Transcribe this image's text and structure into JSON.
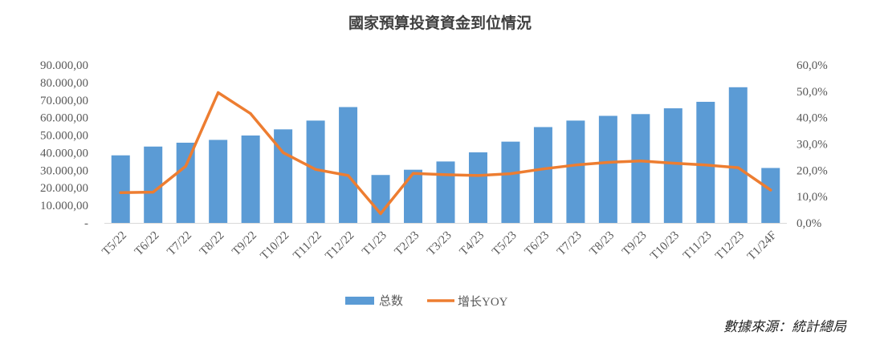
{
  "chart_data": {
    "type": "bar",
    "title": "國家預算投資資金到位情況",
    "source": "數據來源：統計總局",
    "categories": [
      "T5/22",
      "T6/22",
      "T7/22",
      "T8/22",
      "T9/22",
      "T10/22",
      "T11/22",
      "T12/22",
      "T1/23",
      "T2/23",
      "T3/23",
      "T4/23",
      "T5/23",
      "T6/23",
      "T7/23",
      "T8/23",
      "T9/23",
      "T10/23",
      "T11/23",
      "T12/23",
      "T1/24F"
    ],
    "series": [
      {
        "name": "总数",
        "type": "bar",
        "axis": "left",
        "color": "#5b9bd5",
        "values": [
          38500,
          43500,
          45700,
          47300,
          49800,
          53300,
          58300,
          66000,
          27300,
          30300,
          35000,
          40200,
          46300,
          54600,
          58300,
          61000,
          62000,
          65300,
          69000,
          77300,
          31300
        ]
      },
      {
        "name": "增长YOY",
        "type": "line",
        "axis": "right",
        "color": "#ed7d31",
        "values": [
          11.5,
          11.7,
          21.5,
          49.5,
          41.5,
          26.7,
          20.3,
          18.0,
          3.5,
          18.8,
          18.3,
          18.0,
          18.7,
          20.5,
          22.0,
          23.0,
          23.5,
          22.7,
          22.0,
          21.0,
          12.5
        ]
      }
    ],
    "y_left": {
      "lim": [
        0,
        90000
      ],
      "ticks": [
        "-",
        "10.000,00",
        "20.000,00",
        "30.000,00",
        "40.000,00",
        "50.000,00",
        "60.000,00",
        "70.000,00",
        "80.000,00",
        "90.000,00"
      ]
    },
    "y_right": {
      "lim": [
        0,
        60
      ],
      "ticks": [
        "0,0%",
        "10,0%",
        "20,0%",
        "30,0%",
        "40,0%",
        "50,0%",
        "60,0%"
      ]
    },
    "grid": false,
    "legend": "bottom"
  }
}
